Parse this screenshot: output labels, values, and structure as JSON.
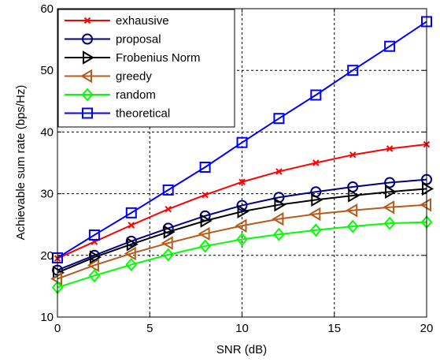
{
  "chart_data": {
    "type": "line",
    "title": "",
    "xlabel": "SNR (dB)",
    "ylabel": "Achievable sum rate (bps/Hz)",
    "xlim": [
      0,
      20
    ],
    "ylim": [
      10,
      60
    ],
    "xticks": [
      0,
      5,
      10,
      15,
      20
    ],
    "yticks": [
      10,
      20,
      30,
      40,
      50,
      60
    ],
    "grid": true,
    "grid_style": "dashed",
    "legend_position": "top-left",
    "x": [
      0,
      2,
      4,
      6,
      8,
      10,
      12,
      14,
      16,
      18,
      20
    ],
    "series": [
      {
        "name": "exhausive",
        "color": "#ff0000",
        "marker": "x",
        "values": [
          19.5,
          22.2,
          24.9,
          27.5,
          29.8,
          31.9,
          33.6,
          35.0,
          36.3,
          37.3,
          38.0
        ]
      },
      {
        "name": "proposal",
        "color": "#000080",
        "marker": "circle",
        "values": [
          17.6,
          20.0,
          22.3,
          24.4,
          26.4,
          28.1,
          29.4,
          30.3,
          31.1,
          31.8,
          32.3
        ]
      },
      {
        "name": "Frobenius Norm",
        "color": "#000000",
        "marker": "triangle-right",
        "values": [
          17.2,
          19.7,
          21.8,
          23.8,
          25.6,
          27.1,
          28.2,
          29.0,
          29.7,
          30.3,
          30.8
        ]
      },
      {
        "name": "greedy",
        "color": "#b85a1a",
        "marker": "triangle-left",
        "values": [
          16.2,
          18.4,
          20.3,
          22.0,
          23.5,
          24.8,
          25.9,
          26.7,
          27.3,
          27.8,
          28.2
        ]
      },
      {
        "name": "random",
        "color": "#00ff00",
        "marker": "diamond",
        "values": [
          14.8,
          16.7,
          18.5,
          20.1,
          21.5,
          22.6,
          23.4,
          24.1,
          24.7,
          25.2,
          25.4
        ]
      },
      {
        "name": "theoretical",
        "color": "#0000ff",
        "marker": "square",
        "values": [
          19.6,
          23.3,
          26.9,
          30.6,
          34.3,
          38.3,
          42.2,
          46.0,
          50.0,
          53.9,
          57.9
        ]
      }
    ]
  }
}
